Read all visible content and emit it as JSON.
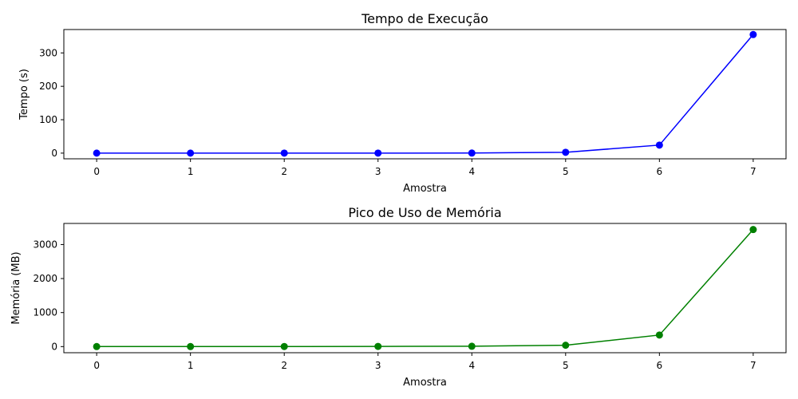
{
  "chart_data": [
    {
      "type": "line",
      "title": "Tempo de Execução",
      "xlabel": "Amostra",
      "ylabel": "Tempo (s)",
      "x": [
        0,
        1,
        2,
        3,
        4,
        5,
        6,
        7
      ],
      "xticks": [
        "0",
        "1",
        "2",
        "3",
        "4",
        "5",
        "6",
        "7"
      ],
      "xlim": [
        -0.35,
        7.35
      ],
      "ylim": [
        -17,
        370
      ],
      "yticks": [
        0,
        100,
        200,
        300
      ],
      "series": [
        {
          "values": [
            0.01,
            0.02,
            0.05,
            0.1,
            0.3,
            2.5,
            24,
            355
          ],
          "color": "#0000ff",
          "marker": "circle"
        }
      ],
      "grid": false,
      "legend": "none"
    },
    {
      "type": "line",
      "title": "Pico de Uso de Memória",
      "xlabel": "Amostra",
      "ylabel": "Memória (MB)",
      "x": [
        0,
        1,
        2,
        3,
        4,
        5,
        6,
        7
      ],
      "xticks": [
        "0",
        "1",
        "2",
        "3",
        "4",
        "5",
        "6",
        "7"
      ],
      "xlim": [
        -0.35,
        7.35
      ],
      "ylim": [
        -180,
        3620
      ],
      "yticks": [
        0,
        1000,
        2000,
        3000
      ],
      "series": [
        {
          "values": [
            0.5,
            1,
            2,
            5,
            10,
            40,
            340,
            3440
          ],
          "color": "#008000",
          "marker": "circle"
        }
      ],
      "grid": false,
      "legend": "none"
    }
  ]
}
